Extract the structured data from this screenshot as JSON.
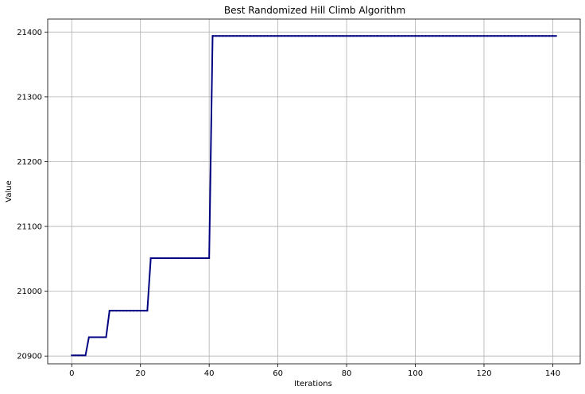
{
  "chart_data": {
    "type": "line",
    "title": "Best Randomized Hill Climb Algorithm",
    "xlabel": "Iterations",
    "ylabel": "Value",
    "xlim": [
      -7,
      148
    ],
    "ylim": [
      20888,
      21420
    ],
    "xticks": [
      0,
      20,
      40,
      60,
      80,
      100,
      120,
      140
    ],
    "yticks": [
      20900,
      21000,
      21100,
      21200,
      21300,
      21400
    ],
    "grid": true,
    "series": [
      {
        "color": "#000080",
        "markers": true,
        "segments": [
          {
            "from": 0,
            "to": 4,
            "value": 20901
          },
          {
            "from": 5,
            "to": 10,
            "value": 20929
          },
          {
            "from": 11,
            "to": 22,
            "value": 20970
          },
          {
            "from": 23,
            "to": 40,
            "value": 21051
          },
          {
            "from": 41,
            "to": 141,
            "value": 21394
          }
        ]
      }
    ]
  }
}
